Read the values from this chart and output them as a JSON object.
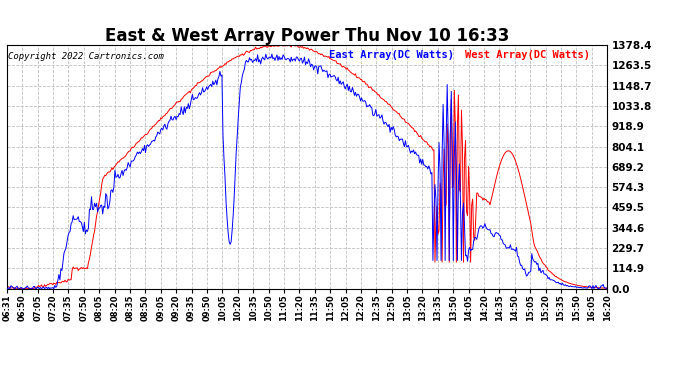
{
  "title": "East & West Array Power Thu Nov 10 16:33",
  "copyright": "Copyright 2022 Cartronics.com",
  "legend_east": "East Array(DC Watts)",
  "legend_west": "West Array(DC Watts)",
  "east_color": "blue",
  "west_color": "red",
  "background_color": "#ffffff",
  "grid_color": "#c0c0c0",
  "yticks": [
    0.0,
    114.9,
    229.7,
    344.6,
    459.5,
    574.3,
    689.2,
    804.1,
    918.9,
    1033.8,
    1148.7,
    1263.5,
    1378.4
  ],
  "xlabels": [
    "06:31",
    "06:50",
    "07:05",
    "07:20",
    "07:35",
    "07:50",
    "08:05",
    "08:20",
    "08:35",
    "08:50",
    "09:05",
    "09:20",
    "09:35",
    "09:50",
    "10:05",
    "10:20",
    "10:35",
    "10:50",
    "11:05",
    "11:20",
    "11:35",
    "11:50",
    "12:05",
    "12:20",
    "12:35",
    "12:50",
    "13:05",
    "13:20",
    "13:35",
    "13:50",
    "14:05",
    "14:20",
    "14:35",
    "14:50",
    "15:05",
    "15:20",
    "15:35",
    "15:50",
    "16:05",
    "16:20"
  ],
  "ymax": 1378.4,
  "ymin": 0.0
}
